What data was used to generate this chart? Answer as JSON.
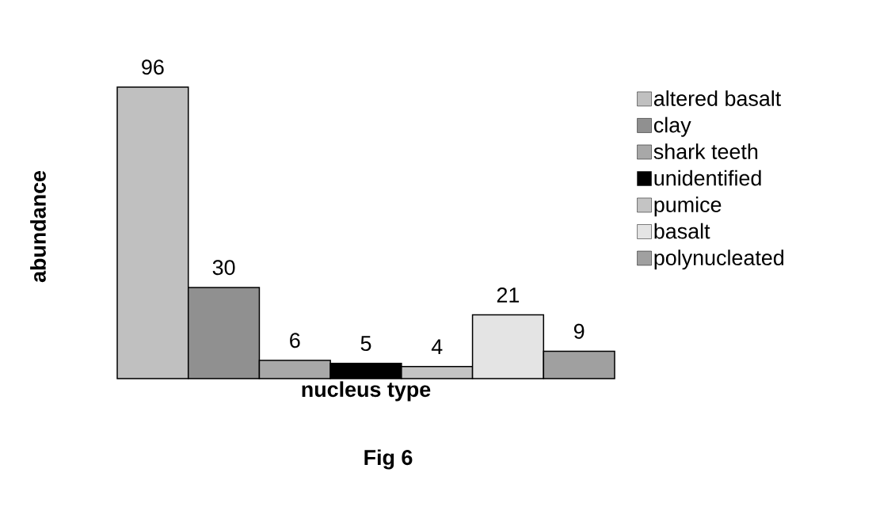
{
  "chart_data": {
    "type": "bar",
    "xlabel": "nucleus type",
    "ylabel": "abundance",
    "annotations": [
      "Fig 6"
    ],
    "categories": [
      null
    ],
    "series": [
      {
        "name": "altered basalt",
        "color": "#c0c0c0",
        "values": [
          96
        ]
      },
      {
        "name": "clay",
        "color": "#909090",
        "values": [
          30
        ]
      },
      {
        "name": "shark teeth",
        "color": "#a8a8a8",
        "values": [
          6
        ]
      },
      {
        "name": "unidentified",
        "color": "#000000",
        "values": [
          5
        ]
      },
      {
        "name": "pumice",
        "color": "#c4c4c4",
        "values": [
          4
        ]
      },
      {
        "name": "basalt",
        "color": "#e4e4e4",
        "values": [
          21
        ]
      },
      {
        "name": "polynucleated",
        "color": "#a0a0a0",
        "values": [
          9
        ]
      }
    ],
    "data_labels": true,
    "legend": "right"
  }
}
